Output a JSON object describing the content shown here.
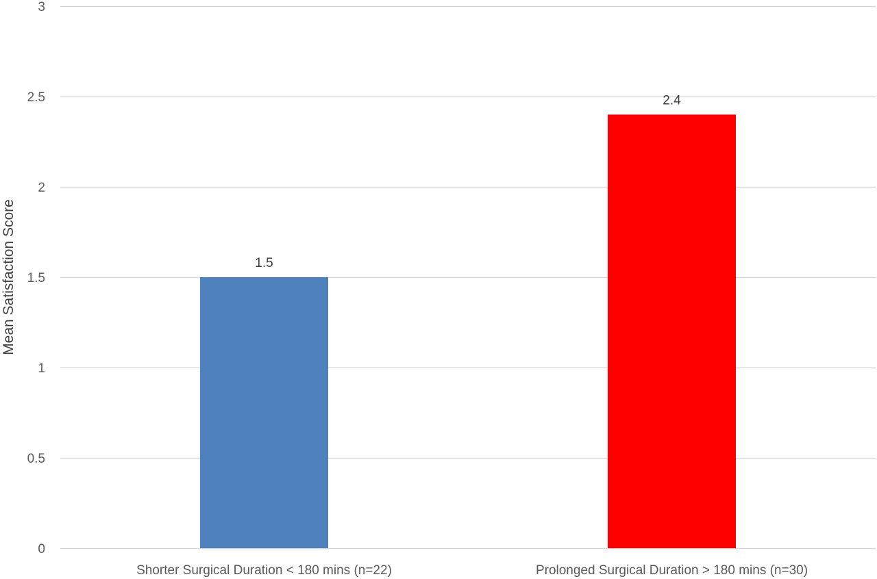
{
  "chart_data": {
    "type": "bar",
    "title": "",
    "xlabel": "",
    "ylabel": "Mean Satisfaction Score",
    "ylim": [
      0,
      3
    ],
    "yticks": [
      0,
      0.5,
      1,
      1.5,
      2,
      2.5,
      3
    ],
    "ytick_labels": [
      "0",
      "0.5",
      "1",
      "1.5",
      "2",
      "2.5",
      "3"
    ],
    "grid": true,
    "legend": "none",
    "categories": [
      "Shorter Surgical Duration < 180 mins (n=22)",
      "Prolonged Surgical Duration > 180 mins (n=30)"
    ],
    "values": [
      1.5,
      2.4
    ],
    "data_labels": [
      "1.5",
      "2.4"
    ],
    "colors": [
      "#4f81bd",
      "#ff0000"
    ],
    "gridline_color": "#d9d9d9"
  }
}
